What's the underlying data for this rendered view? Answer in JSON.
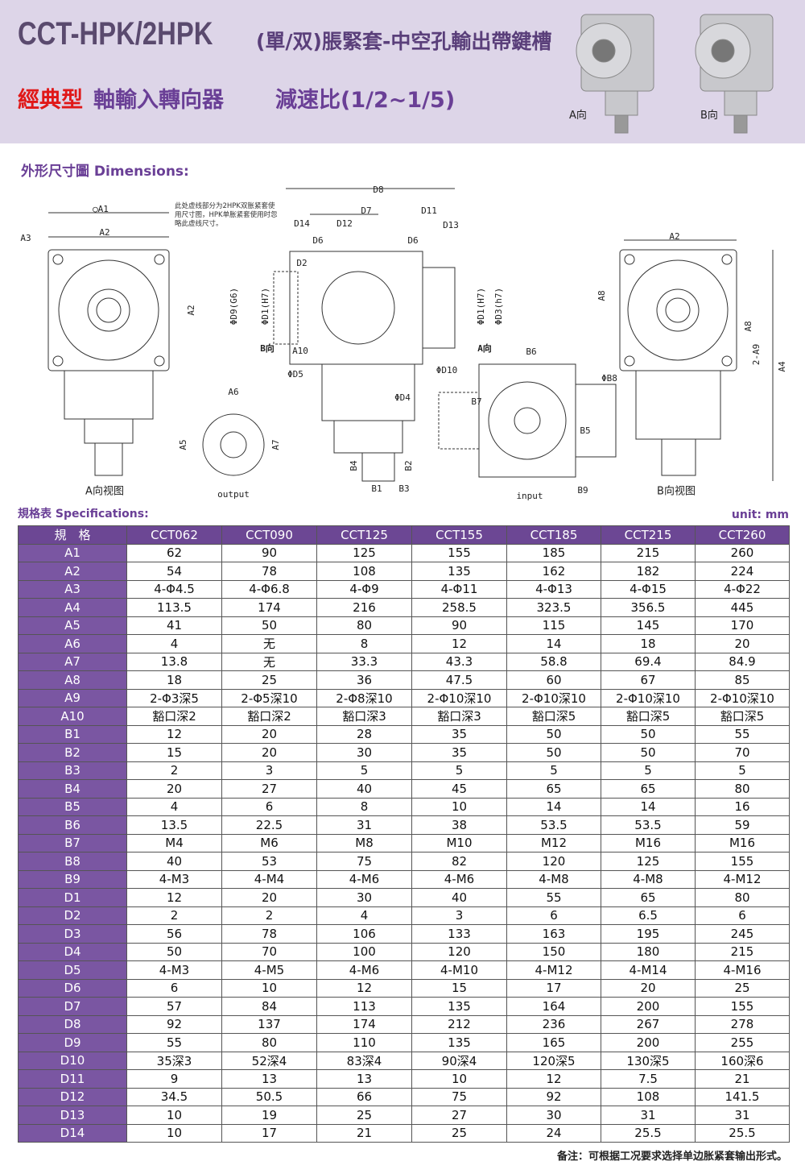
{
  "header": {
    "title": "CCT-HPK/2HPK",
    "title_suffix": "(單/双)脹緊套-中空孔輸出帶鍵槽",
    "subtitle_red": "經典型",
    "subtitle_main": "軸輸入轉向器",
    "ratio": "減速比(1/2~1/5)",
    "image_labels": [
      "A向",
      "B向"
    ]
  },
  "dimensions": {
    "heading": "外形尺寸圖 Dimensions:",
    "dashed_note": "此处虚线部分为2HPK双胀紧套使用尺寸图，HPK单胀紧套使用时忽略此虚线尺寸。",
    "labels": [
      "○A1",
      "A2",
      "A3",
      "A2",
      "A向视图",
      "A6",
      "A5",
      "A7",
      "output",
      "D8",
      "D7",
      "D11",
      "D14",
      "D12",
      "D13",
      "D6",
      "D6",
      "D2",
      "ΦD9(G6)",
      "ΦD1(H7)",
      "B向",
      "A10",
      "ΦD5",
      "ΦD10",
      "ΦD4",
      "ΦD1(H7)",
      "ΦD3(h7)",
      "A向",
      "B4",
      "B2",
      "B1",
      "B3",
      "B6",
      "ΦB8",
      "B7",
      "B5",
      "input",
      "B9",
      "A2",
      "A8",
      "A8",
      "2-A9",
      "A4",
      "B向视图"
    ]
  },
  "specifications": {
    "heading": "規格表 Specifications:",
    "unit": "unit: mm",
    "table": {
      "header": [
        "規　格",
        "CCT062",
        "CCT090",
        "CCT125",
        "CCT155",
        "CCT185",
        "CCT215",
        "CCT260"
      ],
      "rows": [
        [
          "A1",
          "62",
          "90",
          "125",
          "155",
          "185",
          "215",
          "260"
        ],
        [
          "A2",
          "54",
          "78",
          "108",
          "135",
          "162",
          "182",
          "224"
        ],
        [
          "A3",
          "4-Φ4.5",
          "4-Φ6.8",
          "4-Φ9",
          "4-Φ11",
          "4-Φ13",
          "4-Φ15",
          "4-Φ22"
        ],
        [
          "A4",
          "113.5",
          "174",
          "216",
          "258.5",
          "323.5",
          "356.5",
          "445"
        ],
        [
          "A5",
          "41",
          "50",
          "80",
          "90",
          "115",
          "145",
          "170"
        ],
        [
          "A6",
          "4",
          "无",
          "8",
          "12",
          "14",
          "18",
          "20"
        ],
        [
          "A7",
          "13.8",
          "无",
          "33.3",
          "43.3",
          "58.8",
          "69.4",
          "84.9"
        ],
        [
          "A8",
          "18",
          "25",
          "36",
          "47.5",
          "60",
          "67",
          "85"
        ],
        [
          "A9",
          "2-Φ3深5",
          "2-Φ5深10",
          "2-Φ8深10",
          "2-Φ10深10",
          "2-Φ10深10",
          "2-Φ10深10",
          "2-Φ10深10"
        ],
        [
          "A10",
          "豁口深2",
          "豁口深2",
          "豁口深3",
          "豁口深3",
          "豁口深5",
          "豁口深5",
          "豁口深5"
        ],
        [
          "B1",
          "12",
          "20",
          "28",
          "35",
          "50",
          "50",
          "55"
        ],
        [
          "B2",
          "15",
          "20",
          "30",
          "35",
          "50",
          "50",
          "70"
        ],
        [
          "B3",
          "2",
          "3",
          "5",
          "5",
          "5",
          "5",
          "5"
        ],
        [
          "B4",
          "20",
          "27",
          "40",
          "45",
          "65",
          "65",
          "80"
        ],
        [
          "B5",
          "4",
          "6",
          "8",
          "10",
          "14",
          "14",
          "16"
        ],
        [
          "B6",
          "13.5",
          "22.5",
          "31",
          "38",
          "53.5",
          "53.5",
          "59"
        ],
        [
          "B7",
          "M4",
          "M6",
          "M8",
          "M10",
          "M12",
          "M16",
          "M16"
        ],
        [
          "B8",
          "40",
          "53",
          "75",
          "82",
          "120",
          "125",
          "155"
        ],
        [
          "B9",
          "4-M3",
          "4-M4",
          "4-M6",
          "4-M6",
          "4-M8",
          "4-M8",
          "4-M12"
        ],
        [
          "D1",
          "12",
          "20",
          "30",
          "40",
          "55",
          "65",
          "80"
        ],
        [
          "D2",
          "2",
          "2",
          "4",
          "3",
          "6",
          "6.5",
          "6"
        ],
        [
          "D3",
          "56",
          "78",
          "106",
          "133",
          "163",
          "195",
          "245"
        ],
        [
          "D4",
          "50",
          "70",
          "100",
          "120",
          "150",
          "180",
          "215"
        ],
        [
          "D5",
          "4-M3",
          "4-M5",
          "4-M6",
          "4-M10",
          "4-M12",
          "4-M14",
          "4-M16"
        ],
        [
          "D6",
          "6",
          "10",
          "12",
          "15",
          "17",
          "20",
          "25"
        ],
        [
          "D7",
          "57",
          "84",
          "113",
          "135",
          "164",
          "200",
          "155"
        ],
        [
          "D8",
          "92",
          "137",
          "174",
          "212",
          "236",
          "267",
          "278"
        ],
        [
          "D9",
          "55",
          "80",
          "110",
          "135",
          "165",
          "200",
          "255"
        ],
        [
          "D10",
          "35深3",
          "52深4",
          "83深4",
          "90深4",
          "120深5",
          "130深5",
          "160深6"
        ],
        [
          "D11",
          "9",
          "13",
          "13",
          "10",
          "12",
          "7.5",
          "21"
        ],
        [
          "D12",
          "34.5",
          "50.5",
          "66",
          "75",
          "92",
          "108",
          "141.5"
        ],
        [
          "D13",
          "10",
          "19",
          "25",
          "27",
          "30",
          "31",
          "31"
        ],
        [
          "D14",
          "10",
          "17",
          "21",
          "25",
          "24",
          "25.5",
          "25.5"
        ]
      ]
    }
  },
  "footer_note": "备注：可根据工况要求选择单边胀紧套输出形式。"
}
